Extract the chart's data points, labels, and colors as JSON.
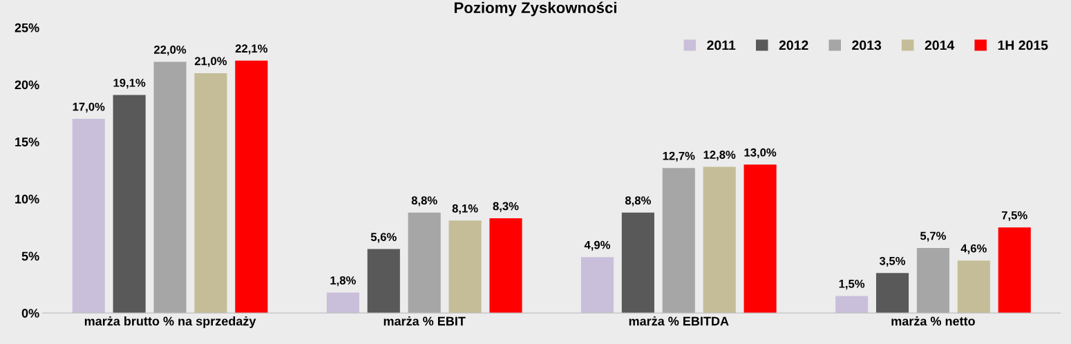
{
  "chart_data": {
    "type": "bar",
    "title": "Poziomy Zyskowności",
    "categories": [
      "marża brutto % na sprzedaży",
      "marża % EBIT",
      "marża % EBITDA",
      "marża % netto"
    ],
    "series": [
      {
        "name": "2011",
        "color": "#c9bfdb",
        "values": [
          17.0,
          1.8,
          4.9,
          1.5
        ],
        "value_labels": [
          "17,0%",
          "1,8%",
          "4,9%",
          "1,5%"
        ]
      },
      {
        "name": "2012",
        "color": "#595959",
        "values": [
          19.1,
          5.6,
          8.8,
          3.5
        ],
        "value_labels": [
          "19,1%",
          "5,6%",
          "8,8%",
          "3,5%"
        ]
      },
      {
        "name": "2013",
        "color": "#a6a6a6",
        "values": [
          22.0,
          8.8,
          12.7,
          5.7
        ],
        "value_labels": [
          "22,0%",
          "8,8%",
          "12,7%",
          "5,7%"
        ]
      },
      {
        "name": "2014",
        "color": "#c4bd97",
        "values": [
          21.0,
          8.1,
          12.8,
          4.6
        ],
        "value_labels": [
          "21,0%",
          "8,1%",
          "12,8%",
          "4,6%"
        ]
      },
      {
        "name": "1H 2015",
        "color": "#ff0000",
        "values": [
          22.1,
          8.3,
          13.0,
          7.5
        ],
        "value_labels": [
          "22,1%",
          "8,3%",
          "13,0%",
          "7,5%"
        ]
      }
    ],
    "ylim": [
      0,
      25
    ],
    "yticks": [
      {
        "value": 0,
        "label": "0%"
      },
      {
        "value": 5,
        "label": "5%"
      },
      {
        "value": 10,
        "label": "10%"
      },
      {
        "value": 15,
        "label": "15%"
      },
      {
        "value": 20,
        "label": "20%"
      },
      {
        "value": 25,
        "label": "25%"
      }
    ],
    "grid": false,
    "legend": "top right"
  }
}
